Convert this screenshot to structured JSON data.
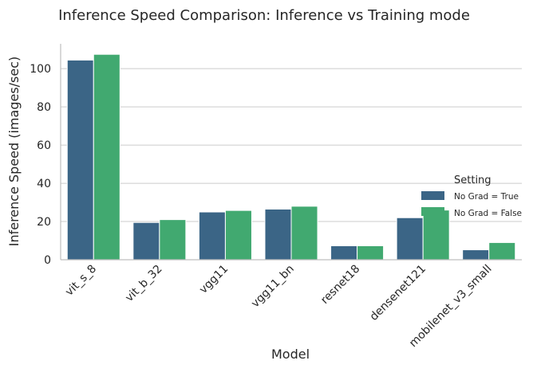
{
  "chart_data": {
    "type": "bar",
    "title": "Inference Speed Comparison: Inference vs Training mode",
    "xlabel": "Model",
    "ylabel": "Inference Speed (images/sec)",
    "categories": [
      "vit_s_8",
      "vit_b_32",
      "vgg11",
      "vgg11_bn",
      "resnet18",
      "densenet121",
      "mobilenet_v3_small"
    ],
    "series": [
      {
        "name": "No Grad = True",
        "color": "#3b6586",
        "values": [
          104.5,
          19.5,
          25.0,
          26.5,
          7.3,
          22.0,
          5.2
        ]
      },
      {
        "name": "No Grad = False",
        "color": "#41a970",
        "values": [
          107.5,
          21.0,
          25.8,
          28.0,
          7.3,
          26.0,
          9.0
        ]
      }
    ],
    "ylim": [
      0,
      113
    ],
    "yticks": [
      0,
      20,
      40,
      60,
      80,
      100
    ],
    "grid": "horizontal",
    "legend": {
      "title": "Setting",
      "placement": "center-right"
    }
  }
}
